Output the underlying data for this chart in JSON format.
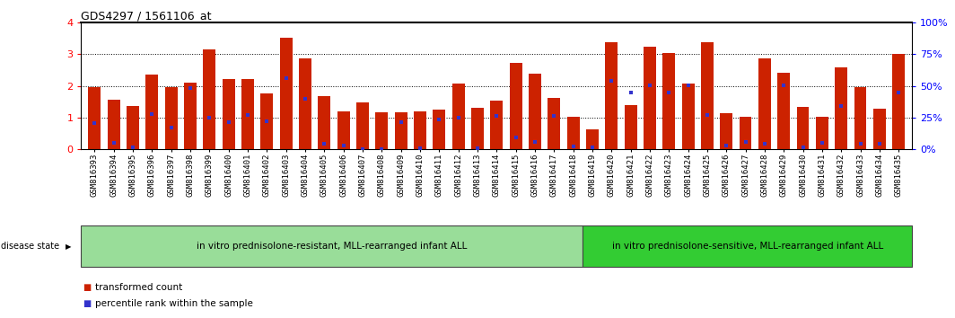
{
  "title": "GDS4297 / 1561106_at",
  "samples": [
    "GSM816393",
    "GSM816394",
    "GSM816395",
    "GSM816396",
    "GSM816397",
    "GSM816398",
    "GSM816399",
    "GSM816400",
    "GSM816401",
    "GSM816402",
    "GSM816403",
    "GSM816404",
    "GSM816405",
    "GSM816406",
    "GSM816407",
    "GSM816408",
    "GSM816409",
    "GSM816410",
    "GSM816411",
    "GSM816412",
    "GSM816413",
    "GSM816414",
    "GSM816415",
    "GSM816416",
    "GSM816417",
    "GSM816418",
    "GSM816419",
    "GSM816420",
    "GSM816421",
    "GSM816422",
    "GSM816423",
    "GSM816424",
    "GSM816425",
    "GSM816426",
    "GSM816427",
    "GSM816428",
    "GSM816429",
    "GSM816430",
    "GSM816431",
    "GSM816432",
    "GSM816433",
    "GSM816434",
    "GSM816435"
  ],
  "bar_heights": [
    1.95,
    1.57,
    1.38,
    2.35,
    1.95,
    2.1,
    3.15,
    2.2,
    2.2,
    1.75,
    3.52,
    2.85,
    1.68,
    1.2,
    1.47,
    1.17,
    1.18,
    1.2,
    1.25,
    2.07,
    1.3,
    1.55,
    2.73,
    2.38,
    1.62,
    1.02,
    0.62,
    3.38,
    1.4,
    3.22,
    3.02,
    2.08,
    3.38,
    1.13,
    1.02,
    2.85,
    2.4,
    1.35,
    1.02,
    2.57,
    1.95,
    1.28,
    3.0
  ],
  "percentile_ranks": [
    0.82,
    0.2,
    0.08,
    1.12,
    0.7,
    1.92,
    1.0,
    0.85,
    1.08,
    0.88,
    2.25,
    1.58,
    0.18,
    0.12,
    0.02,
    0.02,
    0.87,
    0.05,
    0.95,
    1.0,
    0.05,
    1.07,
    0.38,
    0.25,
    1.07,
    0.1,
    0.08,
    2.15,
    1.8,
    2.02,
    1.78,
    2.02,
    1.08,
    0.12,
    0.25,
    0.17,
    2.02,
    0.07,
    0.2,
    1.38,
    0.18,
    0.18,
    1.78
  ],
  "group1_count": 26,
  "group1_label": "in vitro prednisolone-resistant, MLL-rearranged infant ALL",
  "group2_label": "in vitro prednisolone-sensitive, MLL-rearranged infant ALL",
  "bar_color": "#cc2200",
  "dot_color": "#3333cc",
  "bg_color": "#ffffff",
  "ylim_left": [
    0,
    4
  ],
  "yticks_left": [
    0,
    1,
    2,
    3,
    4
  ],
  "yticks_right": [
    0,
    25,
    50,
    75,
    100
  ],
  "grid_yticks": [
    1,
    2,
    3
  ],
  "group_color1": "#99dd99",
  "group_color2": "#33cc33",
  "title_fontsize": 9,
  "tick_fontsize": 6.5,
  "axis_label_fontsize": 8,
  "group_label_fontsize": 7.5,
  "legend_fontsize": 7.5,
  "disease_state_fontsize": 7.0
}
